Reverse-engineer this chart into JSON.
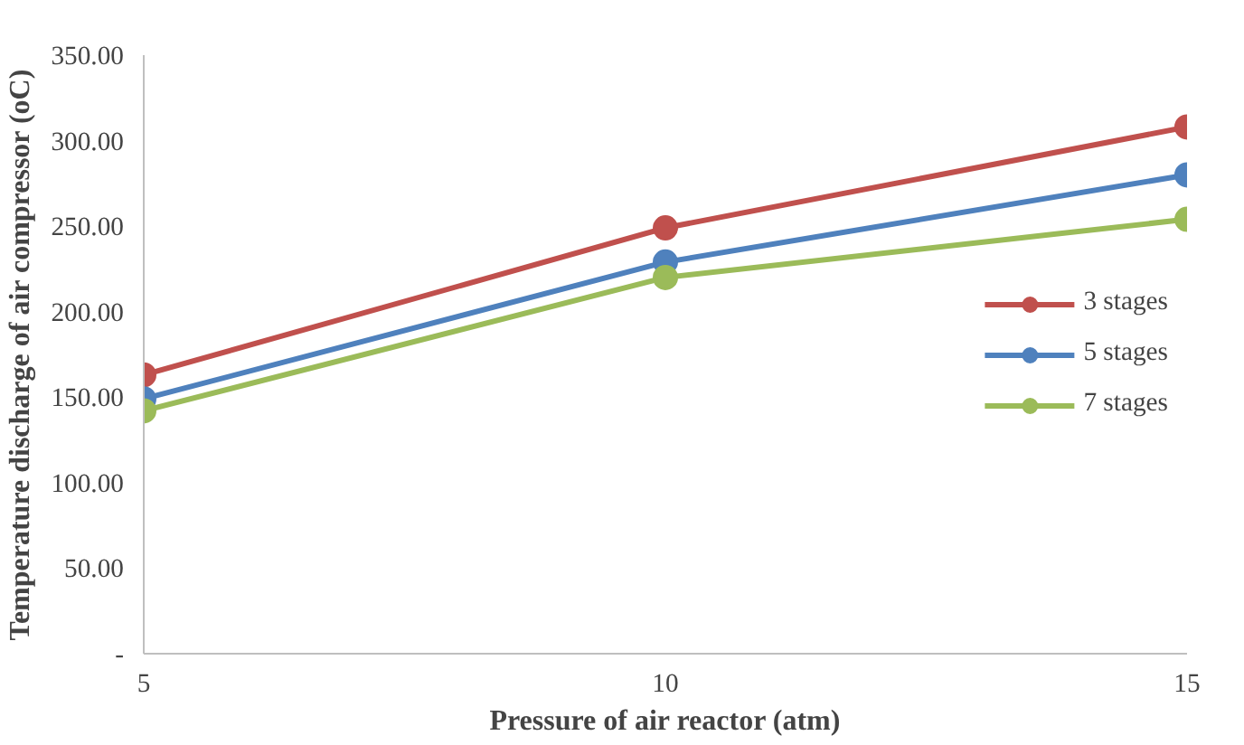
{
  "chart_data": {
    "type": "line",
    "xlabel": "Pressure of air reactor (atm)",
    "ylabel": "Temperature discharge of air compressor (oC)",
    "x": [
      5,
      10,
      15
    ],
    "series": [
      {
        "name": "3 stages",
        "color": "#c0504d",
        "values": [
          163,
          249,
          308
        ]
      },
      {
        "name": "5 stages",
        "color": "#4f81bd",
        "values": [
          149,
          229,
          280
        ]
      },
      {
        "name": "7 stages",
        "color": "#9bbb59",
        "values": [
          142,
          220,
          254
        ]
      }
    ],
    "xlim": [
      5,
      15
    ],
    "xticks": [
      5,
      10,
      15
    ],
    "ylim": [
      0,
      350
    ],
    "yticks": [
      {
        "value": 0,
        "label": "-"
      },
      {
        "value": 50,
        "label": "50.00"
      },
      {
        "value": 100,
        "label": "100.00"
      },
      {
        "value": 150,
        "label": "150.00"
      },
      {
        "value": 200,
        "label": "200.00"
      },
      {
        "value": 250,
        "label": "250.00"
      },
      {
        "value": 300,
        "label": "300.00"
      },
      {
        "value": 350,
        "label": "350.00"
      }
    ],
    "grid": false,
    "legend": "right",
    "marker": "circle",
    "line_style": "solid"
  }
}
